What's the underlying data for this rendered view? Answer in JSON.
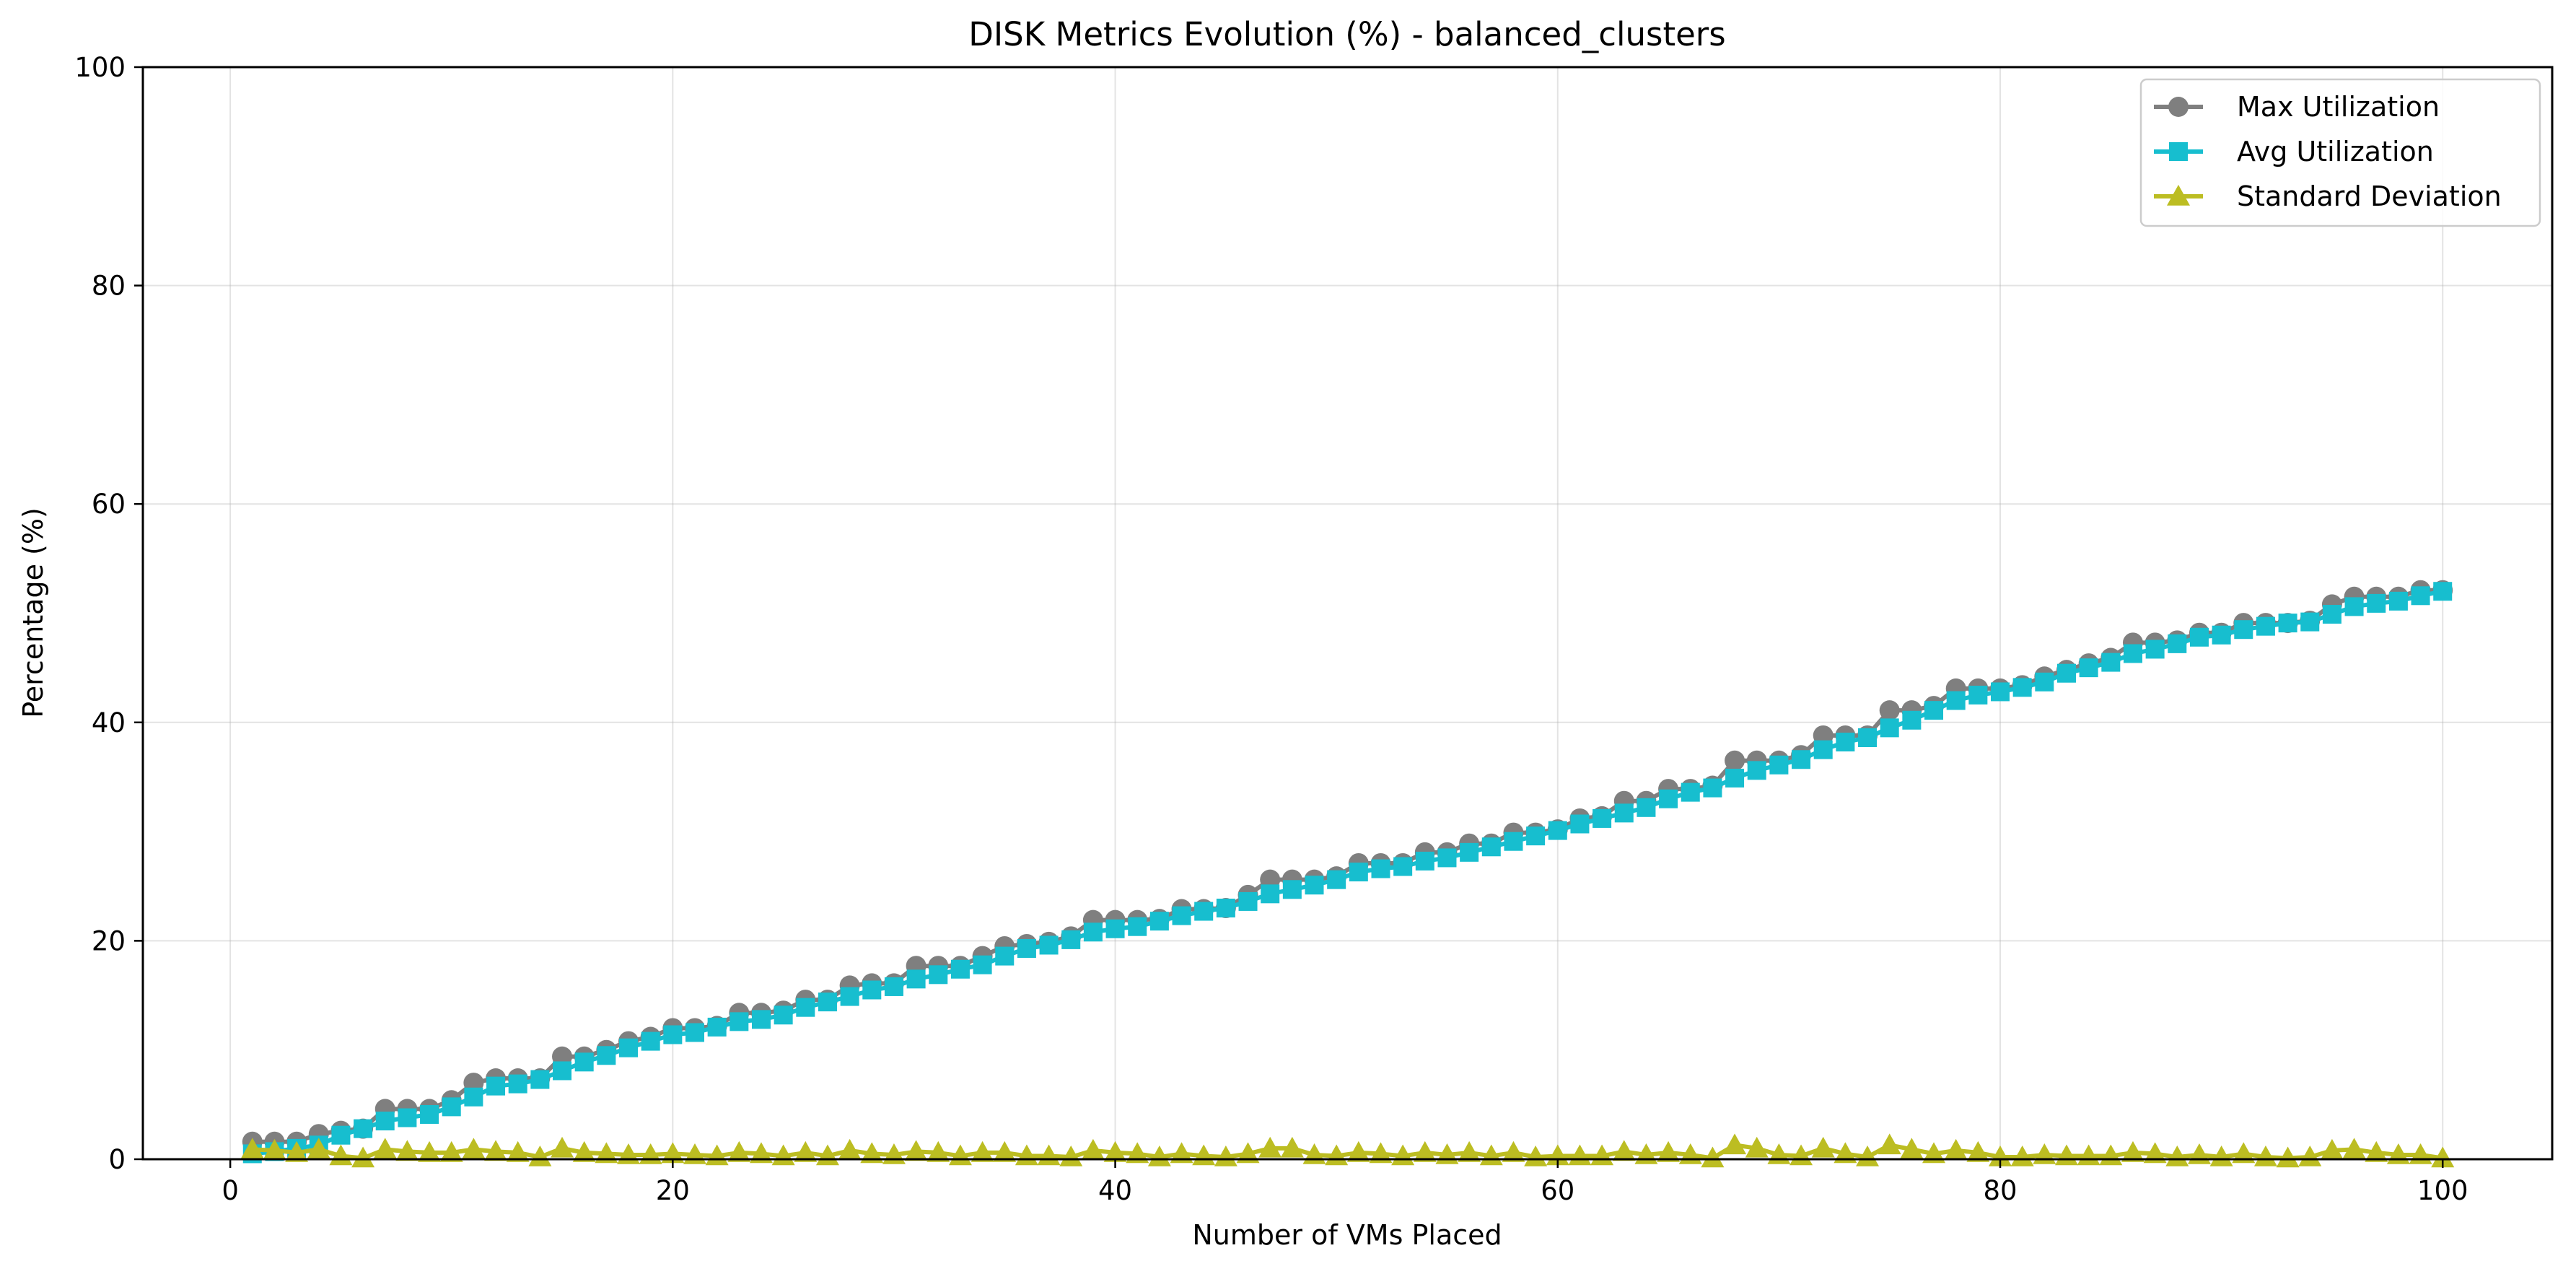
{
  "chart_data": {
    "type": "line",
    "title": "DISK Metrics Evolution (%) - balanced_clusters",
    "xlabel": "Number of VMs Placed",
    "ylabel": "Percentage (%)",
    "xlim": [
      -3.95,
      104.95
    ],
    "ylim": [
      0,
      100
    ],
    "xticks": [
      0,
      20,
      40,
      60,
      80,
      100
    ],
    "yticks": [
      0,
      20,
      40,
      60,
      80,
      100
    ],
    "grid": true,
    "legend_position": "top-right",
    "x": [
      1,
      2,
      3,
      4,
      5,
      6,
      7,
      8,
      9,
      10,
      11,
      12,
      13,
      14,
      15,
      16,
      17,
      18,
      19,
      20,
      21,
      22,
      23,
      24,
      25,
      26,
      27,
      28,
      29,
      30,
      31,
      32,
      33,
      34,
      35,
      36,
      37,
      38,
      39,
      40,
      41,
      42,
      43,
      44,
      45,
      46,
      47,
      48,
      49,
      50,
      51,
      52,
      53,
      54,
      55,
      56,
      57,
      58,
      59,
      60,
      61,
      62,
      63,
      64,
      65,
      66,
      67,
      68,
      69,
      70,
      71,
      72,
      73,
      74,
      75,
      76,
      77,
      78,
      79,
      80,
      81,
      82,
      83,
      84,
      85,
      86,
      87,
      88,
      89,
      90,
      91,
      92,
      93,
      94,
      95,
      96,
      97,
      98,
      99,
      100
    ],
    "series": [
      {
        "name": "Max Utilization",
        "color": "#7f7f7f",
        "marker": "circle",
        "values": [
          1.6,
          1.6,
          1.6,
          2.3,
          2.6,
          2.8,
          4.6,
          4.6,
          4.6,
          5.4,
          7.0,
          7.4,
          7.4,
          7.4,
          9.4,
          9.4,
          10.0,
          10.8,
          11.2,
          12.0,
          12.0,
          12.2,
          13.4,
          13.4,
          13.6,
          14.6,
          14.6,
          15.9,
          16.1,
          16.1,
          17.7,
          17.7,
          17.7,
          18.6,
          19.5,
          19.7,
          19.9,
          20.4,
          21.9,
          21.9,
          21.9,
          22.0,
          22.9,
          22.9,
          23.0,
          24.2,
          25.6,
          25.6,
          25.6,
          25.9,
          27.1,
          27.1,
          27.1,
          28.1,
          28.1,
          28.9,
          28.9,
          29.9,
          29.9,
          30.2,
          31.2,
          31.4,
          32.8,
          32.8,
          33.9,
          33.9,
          34.2,
          36.5,
          36.5,
          36.5,
          37.0,
          38.8,
          38.8,
          38.8,
          41.1,
          41.1,
          41.5,
          43.1,
          43.1,
          43.1,
          43.4,
          44.2,
          44.8,
          45.4,
          45.9,
          47.3,
          47.3,
          47.5,
          48.2,
          48.2,
          49.1,
          49.1,
          49.1,
          49.3,
          50.8,
          51.5,
          51.5,
          51.5,
          52.1,
          52.1
        ]
      },
      {
        "name": "Avg Utilization",
        "color": "#17becf",
        "marker": "square",
        "values": [
          0.5,
          0.7,
          1.0,
          1.3,
          2.2,
          2.8,
          3.5,
          3.8,
          4.1,
          4.8,
          5.7,
          6.7,
          6.9,
          7.3,
          8.1,
          8.9,
          9.5,
          10.2,
          10.8,
          11.4,
          11.6,
          12.1,
          12.6,
          12.8,
          13.2,
          13.9,
          14.4,
          14.9,
          15.5,
          15.8,
          16.5,
          16.9,
          17.4,
          17.8,
          18.6,
          19.3,
          19.6,
          20.1,
          20.8,
          21.1,
          21.3,
          21.8,
          22.3,
          22.7,
          23.0,
          23.6,
          24.3,
          24.7,
          25.1,
          25.6,
          26.3,
          26.6,
          26.8,
          27.3,
          27.6,
          28.1,
          28.6,
          29.1,
          29.6,
          30.1,
          30.7,
          31.2,
          31.7,
          32.2,
          33.0,
          33.6,
          34.0,
          34.9,
          35.6,
          36.1,
          36.6,
          37.5,
          38.2,
          38.6,
          39.5,
          40.2,
          41.1,
          42.0,
          42.5,
          42.8,
          43.2,
          43.7,
          44.5,
          45.0,
          45.5,
          46.3,
          46.7,
          47.2,
          47.8,
          48.0,
          48.5,
          48.8,
          49.1,
          49.2,
          49.9,
          50.6,
          50.9,
          51.1,
          51.6,
          52.0
        ]
      },
      {
        "name": "Standard Deviation",
        "color": "#bcbd22",
        "marker": "triangle",
        "values": [
          0.9,
          0.8,
          0.6,
          0.9,
          0.3,
          0.1,
          0.9,
          0.7,
          0.6,
          0.6,
          0.9,
          0.7,
          0.6,
          0.2,
          1.0,
          0.6,
          0.5,
          0.4,
          0.4,
          0.5,
          0.4,
          0.3,
          0.6,
          0.5,
          0.3,
          0.6,
          0.3,
          0.8,
          0.5,
          0.4,
          0.7,
          0.6,
          0.3,
          0.6,
          0.6,
          0.3,
          0.3,
          0.2,
          0.8,
          0.6,
          0.5,
          0.2,
          0.5,
          0.3,
          0.2,
          0.5,
          1.0,
          1.0,
          0.4,
          0.3,
          0.6,
          0.5,
          0.3,
          0.6,
          0.4,
          0.6,
          0.3,
          0.6,
          0.2,
          0.3,
          0.3,
          0.3,
          0.7,
          0.4,
          0.6,
          0.4,
          0.1,
          1.3,
          1.0,
          0.4,
          0.3,
          1.0,
          0.5,
          0.2,
          1.3,
          0.9,
          0.5,
          0.8,
          0.6,
          0.2,
          0.2,
          0.4,
          0.3,
          0.3,
          0.3,
          0.6,
          0.5,
          0.2,
          0.4,
          0.2,
          0.5,
          0.2,
          0.1,
          0.2,
          0.8,
          0.9,
          0.6,
          0.4,
          0.4,
          0.1
        ]
      }
    ]
  }
}
